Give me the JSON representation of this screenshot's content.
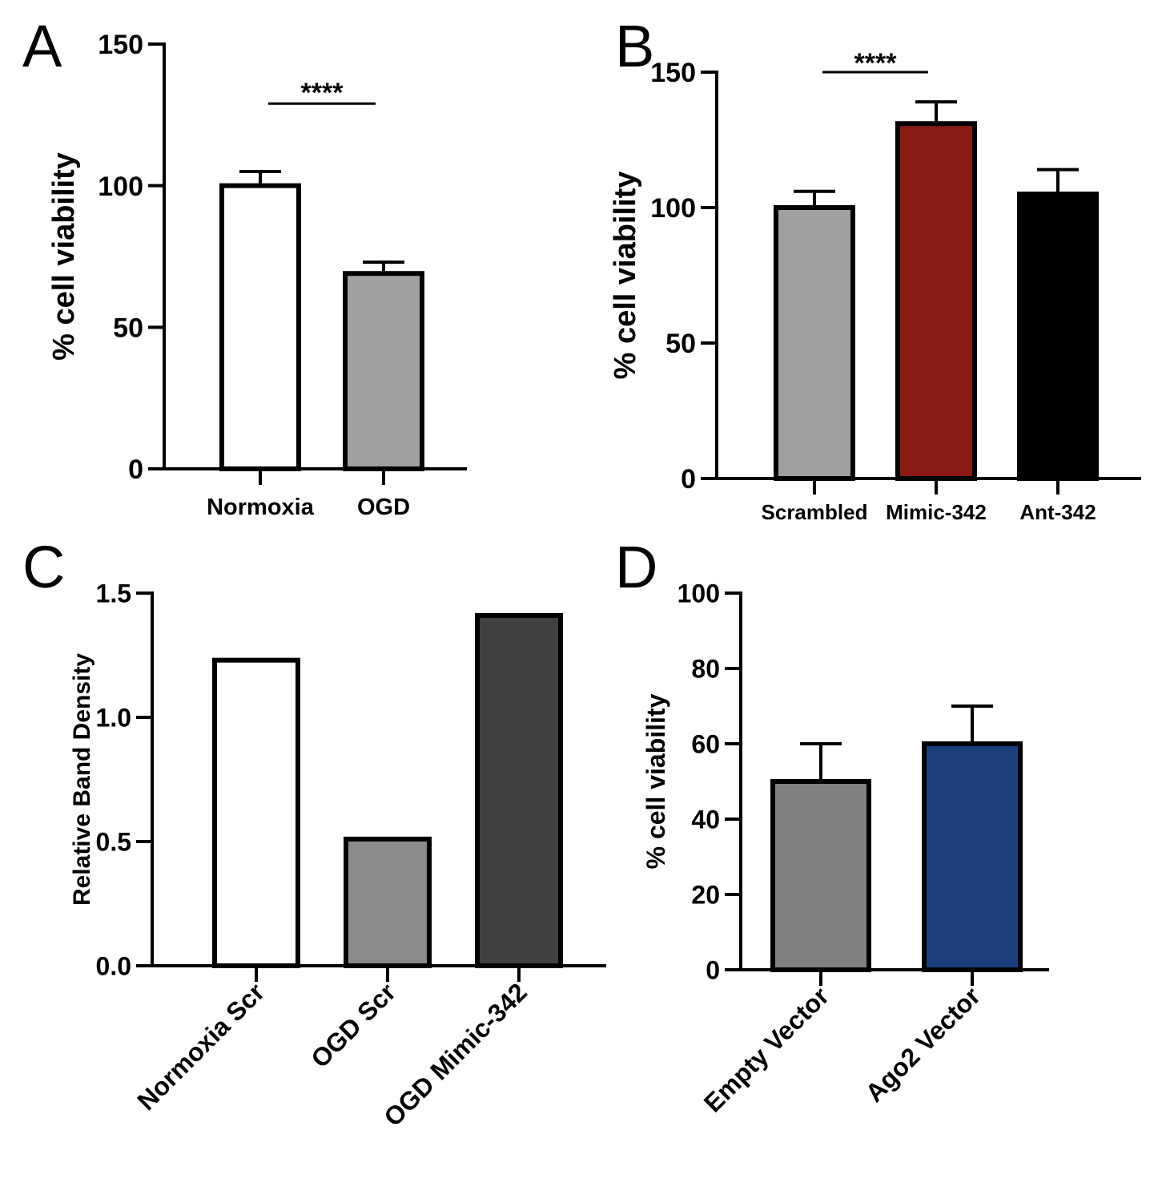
{
  "figure": {
    "panels": [
      "A",
      "B",
      "C",
      "D"
    ]
  },
  "chart_data": [
    {
      "panel": "A",
      "type": "bar",
      "ylabel": "% cell viability",
      "xlabel": "",
      "ylim": [
        0,
        150
      ],
      "yticks": [
        0,
        50,
        100,
        150
      ],
      "categories": [
        "Normoxia",
        "OGD"
      ],
      "values": [
        100,
        69
      ],
      "errors": [
        5,
        4
      ],
      "colors": [
        "#ffffff",
        "#a0a0a0"
      ],
      "significance": {
        "from": 0,
        "to": 1,
        "label": "****",
        "y": 129
      },
      "grid": false,
      "rotate_labels": false
    },
    {
      "panel": "B",
      "type": "bar",
      "ylabel": "% cell viability",
      "xlabel": "",
      "ylim": [
        0,
        150
      ],
      "yticks": [
        0,
        50,
        100,
        150
      ],
      "categories": [
        "Scrambled",
        "Mimic-342",
        "Ant-342"
      ],
      "values": [
        100,
        131,
        105
      ],
      "errors": [
        6,
        8,
        9
      ],
      "colors": [
        "#a0a0a0",
        "#8b1a13",
        "#000000"
      ],
      "significance": {
        "from": 0,
        "to": 1,
        "label": "****",
        "y": 150
      },
      "grid": false,
      "rotate_labels": false
    },
    {
      "panel": "C",
      "type": "bar",
      "ylabel": "Relative Band Density",
      "xlabel": "",
      "ylim": [
        0,
        1.5
      ],
      "yticks": [
        "0.0",
        "0.5",
        "1.0",
        "1.5"
      ],
      "categories": [
        "Normoxia Scr",
        "OGD Scr",
        "OGD Mimic-342"
      ],
      "values": [
        1.23,
        0.51,
        1.41
      ],
      "errors": [
        0,
        0,
        0
      ],
      "colors": [
        "#ffffff",
        "#8a8a8a",
        "#404040"
      ],
      "grid": false,
      "rotate_labels": true
    },
    {
      "panel": "D",
      "type": "bar",
      "ylabel": "% cell viability",
      "xlabel": "",
      "ylim": [
        0,
        100
      ],
      "yticks": [
        0,
        20,
        40,
        60,
        80,
        100
      ],
      "categories": [
        "Empty Vector",
        "Ago2 Vector"
      ],
      "values": [
        50,
        60
      ],
      "errors": [
        10,
        10
      ],
      "colors": [
        "#808080",
        "#1b3f7a"
      ],
      "grid": false,
      "rotate_labels": true
    }
  ]
}
